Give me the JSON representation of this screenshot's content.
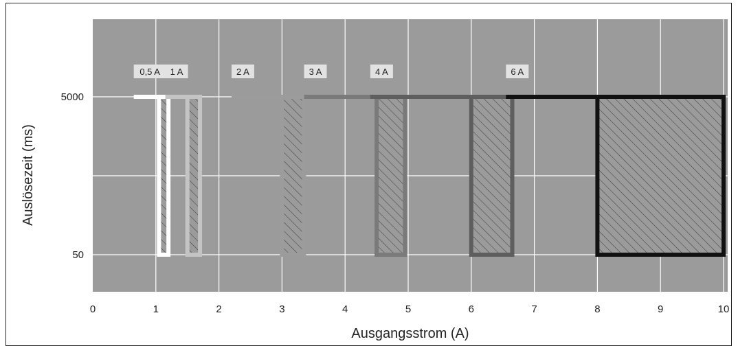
{
  "chart_data": {
    "type": "bar",
    "title": "",
    "xlabel": "Ausgangsstrom (A)",
    "ylabel": "Auslösezeit (ms)",
    "xlim": [
      0,
      10.1
    ],
    "x_ticks": [
      "0",
      "1",
      "2",
      "3",
      "4",
      "5",
      "6",
      "7",
      "8",
      "9",
      "10"
    ],
    "y_ticks": [
      {
        "value": 5000,
        "label": "5000"
      },
      {
        "value": 50,
        "label": "50"
      }
    ],
    "y_scale": "log",
    "grid": true,
    "fuse_ratings": [
      {
        "label": "0,5 A",
        "line_start": 0.65,
        "trip_min": 1.05,
        "trip_max": 1.2,
        "color": "#ffffff"
      },
      {
        "label": "1 A",
        "line_start": 1.15,
        "trip_min": 1.5,
        "trip_max": 1.7,
        "color": "#c4c4c4"
      },
      {
        "label": "2 A",
        "line_start": 2.2,
        "trip_min": 3.0,
        "trip_max": 3.35,
        "color": "#9c9c9c"
      },
      {
        "label": "3 A",
        "line_start": 3.35,
        "trip_min": 4.5,
        "trip_max": 4.95,
        "color": "#7a7a7a"
      },
      {
        "label": "4 A",
        "line_start": 4.4,
        "trip_min": 6.0,
        "trip_max": 6.65,
        "color": "#5e5e5e"
      },
      {
        "label": "6 A",
        "line_start": 6.55,
        "trip_min": 8.0,
        "trip_max": 10.0,
        "color": "#111111"
      }
    ],
    "colors": {
      "plot_background": "#9b9b9b",
      "grid": "#ffffff",
      "label_box": "#e2e2e2"
    }
  }
}
